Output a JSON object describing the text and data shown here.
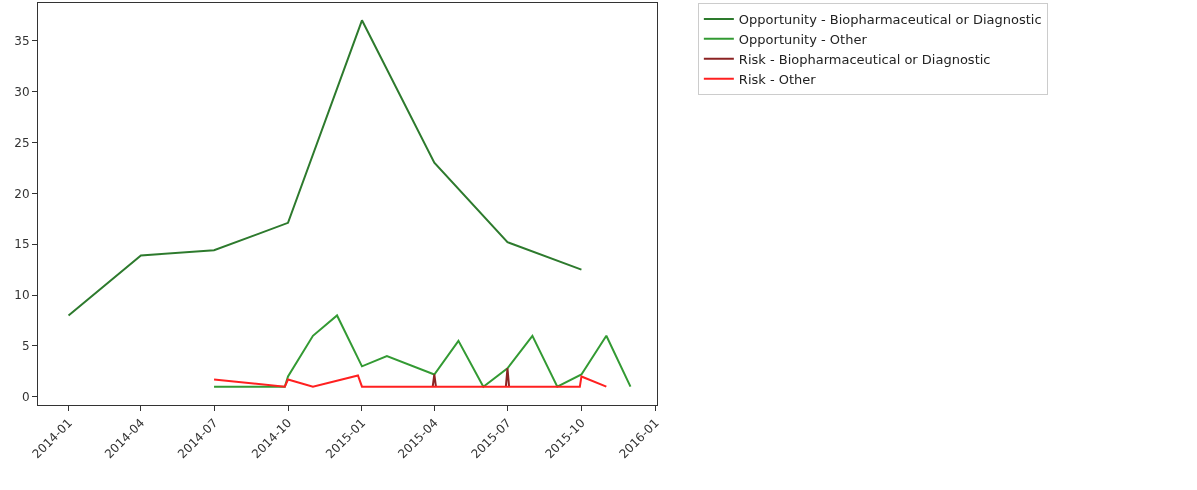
{
  "chart_data": {
    "type": "line",
    "xlim": [
      "2013-11-24",
      "2016-01-03"
    ],
    "ylim": [
      -0.8,
      38.7
    ],
    "xticks": [
      {
        "value": "2014-01-01",
        "label": "2014-01"
      },
      {
        "value": "2014-04-01",
        "label": "2014-04"
      },
      {
        "value": "2014-07-01",
        "label": "2014-07"
      },
      {
        "value": "2014-10-01",
        "label": "2014-10"
      },
      {
        "value": "2015-01-01",
        "label": "2015-01"
      },
      {
        "value": "2015-04-01",
        "label": "2015-04"
      },
      {
        "value": "2015-07-01",
        "label": "2015-07"
      },
      {
        "value": "2015-10-01",
        "label": "2015-10"
      },
      {
        "value": "2016-01-01",
        "label": "2016-01"
      }
    ],
    "yticks": [
      0,
      5,
      10,
      15,
      20,
      25,
      30,
      35
    ],
    "legend": "top right",
    "marker": "none",
    "line_style": "solid",
    "series": [
      {
        "name": "Opportunity - Biopharmaceutical or Diagnostic",
        "color": "#2d7a2d",
        "x": [
          "2014-01-01",
          "2014-04-01",
          "2014-07-01",
          "2014-10-01",
          "2015-01-01",
          "2015-04-01",
          "2015-07-01",
          "2015-10-01"
        ],
        "values": [
          8,
          13.9,
          14.4,
          17.1,
          37,
          23,
          15.2,
          12.5
        ]
      },
      {
        "name": "Opportunity - Other",
        "color": "#339a33",
        "x": [
          "2014-07-01",
          "2014-09-27",
          "2014-10-01",
          "2014-11-01",
          "2014-12-01",
          "2015-01-01",
          "2015-02-01",
          "2015-04-01",
          "2015-05-01",
          "2015-06-01",
          "2015-07-01",
          "2015-08-01",
          "2015-09-01",
          "2015-10-01",
          "2015-11-01",
          "2015-12-01"
        ],
        "values": [
          1,
          1,
          2,
          6,
          8,
          3,
          4,
          2.2,
          5.5,
          1,
          2.8,
          6,
          1,
          2.2,
          6,
          1
        ]
      },
      {
        "name": "Risk - Biopharmaceutical or Diagnostic",
        "color": "#8b2323",
        "x": [
          "2015-03-30",
          "2015-04-01",
          "2015-04-03",
          "2015-05-15",
          "2015-06-29",
          "2015-07-01",
          "2015-07-03"
        ],
        "values": [
          1,
          2.2,
          1,
          null,
          1,
          2.8,
          1
        ]
      },
      {
        "name": "Risk - Other",
        "color": "#ff2020",
        "x": [
          "2014-07-01",
          "2014-09-27",
          "2014-10-01",
          "2014-11-01",
          "2014-12-27",
          "2015-01-01",
          "2015-03-30",
          "2015-04-01",
          "2015-04-03",
          "2015-06-29",
          "2015-07-01",
          "2015-07-03",
          "2015-09-29",
          "2015-10-01",
          "2015-11-01"
        ],
        "values": [
          1.7,
          1,
          1.7,
          1,
          2.1,
          1,
          1,
          1,
          1,
          1,
          1,
          1,
          1,
          2,
          1
        ]
      }
    ]
  }
}
